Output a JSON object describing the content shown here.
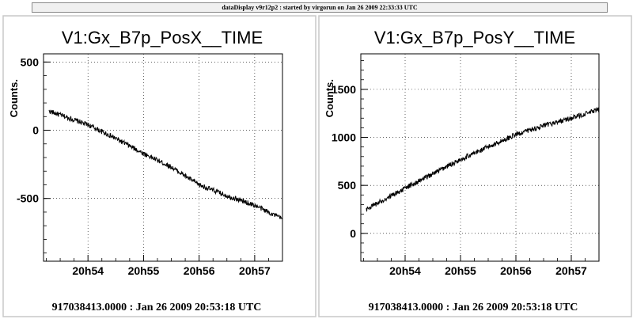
{
  "window_title": "dataDisplay v9r12p2 : started by virgorun on Jan 26 2009 22:33:33 UTC",
  "chart_data": [
    {
      "type": "line",
      "title": "V1:Gx_B7p_PosX__TIME",
      "ylabel": "Counts.",
      "xlabel": "",
      "x_ticks": [
        "20h54",
        "20h55",
        "20h56",
        "20h57"
      ],
      "y_ticks": [
        "500",
        "0",
        "-500"
      ],
      "xlim_minutes_after_20h53": [
        0.2,
        4.5
      ],
      "ylim": [
        -960,
        560
      ],
      "footer": "917038413.0000 : Jan 26 2009 20:53:18 UTC",
      "series": [
        {
          "x": [
            "20h53.3",
            "20h54",
            "20h54.5",
            "20h55",
            "20h55.5",
            "20h56",
            "20h56.5",
            "20h57",
            "20h57.5"
          ],
          "values": [
            140,
            40,
            -60,
            -170,
            -270,
            -400,
            -480,
            -550,
            -650
          ]
        }
      ]
    },
    {
      "type": "line",
      "title": "V1:Gx_B7p_PosY__TIME",
      "ylabel": "Counts.",
      "xlabel": "",
      "x_ticks": [
        "20h54",
        "20h55",
        "20h56",
        "20h57"
      ],
      "y_ticks": [
        "1500",
        "1000",
        "500",
        "0"
      ],
      "xlim_minutes_after_20h53": [
        0.2,
        4.5
      ],
      "ylim": [
        -290,
        1870
      ],
      "footer": "917038413.0000 : Jan 26 2009 20:53:18 UTC",
      "series": [
        {
          "x": [
            "20h53.3",
            "20h54",
            "20h54.5",
            "20h55",
            "20h55.5",
            "20h56",
            "20h56.5",
            "20h57",
            "20h57.5"
          ],
          "values": [
            250,
            470,
            620,
            770,
            900,
            1030,
            1120,
            1200,
            1290
          ]
        }
      ]
    }
  ]
}
